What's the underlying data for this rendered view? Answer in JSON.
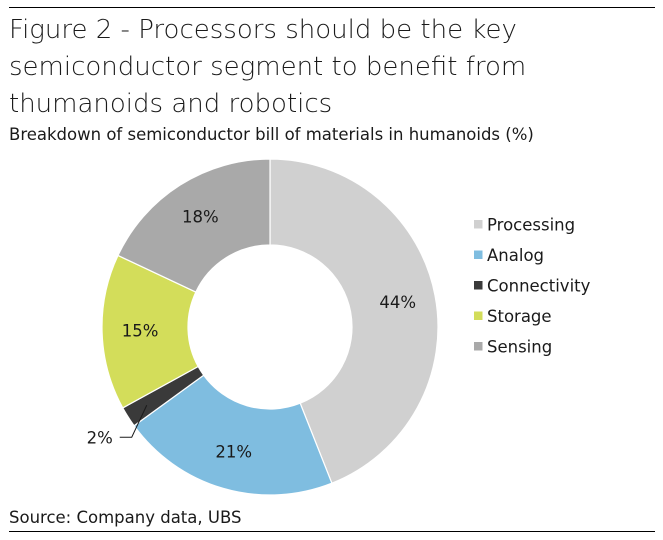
{
  "header": {
    "title_lines": [
      "Figure 2 - Processors should be the key",
      "semiconductor segment to benefit from",
      "thumanoids and robotics"
    ],
    "subtitle": "Breakdown of semiconductor bill of materials in humanoids (%)"
  },
  "footer": {
    "source": "Source: Company data, UBS"
  },
  "chart_data": {
    "type": "pie",
    "style": "donut",
    "title": "Figure 2 - Processors should be the key semiconductor segment to benefit from thumanoids and robotics",
    "subtitle": "Breakdown of semiconductor bill of materials in humanoids (%)",
    "legend_position": "right",
    "unit": "%",
    "start": "12 o'clock, clockwise",
    "slices": [
      {
        "label": "Processing",
        "value": 44,
        "data_label": "44%",
        "color": "#d0d0d0"
      },
      {
        "label": "Analog",
        "value": 21,
        "data_label": "21%",
        "color": "#7fbde0"
      },
      {
        "label": "Connectivity",
        "value": 2,
        "data_label": "2%",
        "color": "#3a3a3a"
      },
      {
        "label": "Storage",
        "value": 15,
        "data_label": "15%",
        "color": "#d3dd5a"
      },
      {
        "label": "Sensing",
        "value": 18,
        "data_label": "18%",
        "color": "#a9a9a9"
      }
    ]
  }
}
